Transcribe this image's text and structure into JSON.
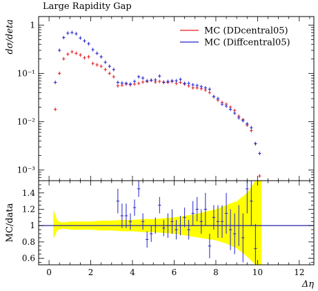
{
  "chart_data": [
    {
      "type": "scatter",
      "title": "Large Rapidity Gap",
      "ylabel": "dσ/deta",
      "yscale": "log",
      "ylim": [
        0.0006,
        1.5
      ],
      "xlim": [
        -0.5,
        12.7
      ],
      "yticks": [
        {
          "value": 1,
          "label": "1"
        },
        {
          "value": 0.1,
          "label": "10⁻¹"
        },
        {
          "value": 0.01,
          "label": "10⁻²"
        },
        {
          "value": 0.001,
          "label": "10⁻³"
        }
      ],
      "legend_position": "top-right",
      "series": [
        {
          "name": "MC (DDcentral05)",
          "color": "#e41a1c",
          "x": [
            0.3,
            0.5,
            0.7,
            0.9,
            1.1,
            1.3,
            1.5,
            1.7,
            1.9,
            2.1,
            2.3,
            2.5,
            2.7,
            2.9,
            3.1,
            3.3,
            3.5,
            3.7,
            3.9,
            4.1,
            4.3,
            4.5,
            4.7,
            4.9,
            5.1,
            5.3,
            5.5,
            5.7,
            5.9,
            6.1,
            6.3,
            6.5,
            6.7,
            6.9,
            7.1,
            7.3,
            7.5,
            7.7,
            7.9,
            8.1,
            8.3,
            8.5,
            8.7,
            8.9,
            9.1,
            9.3,
            9.5,
            9.7,
            9.9,
            10.1
          ],
          "y": [
            0.018,
            0.1,
            0.2,
            0.25,
            0.28,
            0.26,
            0.24,
            0.21,
            0.22,
            0.16,
            0.15,
            0.14,
            0.12,
            0.1,
            0.085,
            0.055,
            0.057,
            0.06,
            0.058,
            0.06,
            0.062,
            0.066,
            0.068,
            0.072,
            0.066,
            0.068,
            0.066,
            0.065,
            0.068,
            0.062,
            0.065,
            0.06,
            0.055,
            0.05,
            0.05,
            0.048,
            0.045,
            0.04,
            0.033,
            0.028,
            0.025,
            0.023,
            0.02,
            0.017,
            0.013,
            0.011,
            0.0085,
            0.0065,
            0.0035,
            0.00075
          ]
        },
        {
          "name": "MC (Diffcentral05)",
          "color": "#2222cc",
          "x": [
            0.3,
            0.5,
            0.7,
            0.9,
            1.1,
            1.3,
            1.5,
            1.7,
            1.9,
            2.1,
            2.3,
            2.5,
            2.7,
            2.9,
            3.1,
            3.3,
            3.5,
            3.7,
            3.9,
            4.1,
            4.3,
            4.5,
            4.7,
            4.9,
            5.1,
            5.3,
            5.5,
            5.7,
            5.9,
            6.1,
            6.3,
            6.5,
            6.7,
            6.9,
            7.1,
            7.3,
            7.5,
            7.7,
            7.9,
            8.1,
            8.3,
            8.5,
            8.7,
            8.9,
            9.1,
            9.3,
            9.5,
            9.7,
            9.9,
            10.1
          ],
          "y": [
            0.065,
            0.3,
            0.55,
            0.68,
            0.7,
            0.66,
            0.54,
            0.47,
            0.41,
            0.31,
            0.26,
            0.22,
            0.17,
            0.14,
            0.12,
            0.065,
            0.063,
            0.062,
            0.06,
            0.068,
            0.085,
            0.08,
            0.07,
            0.072,
            0.073,
            0.088,
            0.065,
            0.068,
            0.07,
            0.07,
            0.075,
            0.062,
            0.062,
            0.058,
            0.056,
            0.053,
            0.05,
            0.047,
            0.033,
            0.03,
            0.023,
            0.021,
            0.018,
            0.015,
            0.012,
            0.0105,
            0.009,
            0.0075,
            0.0035,
            0.0022
          ]
        }
      ]
    },
    {
      "type": "scatter",
      "ylabel": "MC/data",
      "xlabel": "Δη",
      "ylim": [
        0.52,
        1.55
      ],
      "xlim": [
        -0.5,
        12.7
      ],
      "xticks": [
        0,
        2,
        4,
        6,
        8,
        10,
        12
      ],
      "yticks": [
        0.6,
        0.8,
        1,
        1.2,
        1.4
      ],
      "band": {
        "color": "#ffff00",
        "x": [
          0.2,
          0.4,
          0.6,
          0.8,
          1.0,
          1.5,
          2.0,
          2.5,
          3.0,
          3.5,
          4.0,
          4.5,
          5.0,
          5.5,
          6.0,
          6.5,
          7.0,
          7.5,
          8.0,
          8.5,
          9.0,
          9.5,
          9.9,
          10.0,
          10.2
        ],
        "hi": [
          1.2,
          1.06,
          1.04,
          1.04,
          1.05,
          1.05,
          1.05,
          1.06,
          1.06,
          1.07,
          1.07,
          1.08,
          1.08,
          1.09,
          1.1,
          1.12,
          1.14,
          1.17,
          1.2,
          1.25,
          1.3,
          1.4,
          1.55,
          1.55,
          1.55
        ],
        "lo": [
          0.84,
          0.94,
          0.96,
          0.96,
          0.95,
          0.95,
          0.95,
          0.94,
          0.94,
          0.93,
          0.93,
          0.92,
          0.92,
          0.91,
          0.9,
          0.88,
          0.86,
          0.84,
          0.82,
          0.78,
          0.72,
          0.62,
          0.52,
          0.52,
          0.52
        ]
      },
      "series": [
        {
          "name": "MC (Diffcentral05)",
          "color": "#2222cc",
          "x": [
            3.3,
            3.5,
            3.7,
            3.9,
            4.1,
            4.3,
            4.5,
            4.7,
            4.9,
            5.1,
            5.3,
            5.5,
            5.7,
            5.9,
            6.1,
            6.3,
            6.5,
            6.7,
            6.9,
            7.1,
            7.3,
            7.5,
            7.7,
            7.9,
            8.1,
            8.3,
            8.5,
            8.7,
            8.9,
            9.1,
            9.3,
            9.5,
            9.7,
            9.9
          ],
          "y": [
            1.3,
            1.12,
            1.12,
            1.05,
            1.22,
            1.45,
            1.05,
            0.83,
            0.9,
            1.0,
            1.25,
            0.97,
            1.0,
            1.05,
            0.95,
            1.0,
            1.1,
            0.95,
            1.15,
            1.2,
            1.05,
            1.2,
            0.75,
            1.1,
            1.05,
            1.05,
            1.15,
            0.95,
            0.9,
            1.0,
            0.85,
            1.45,
            1.3,
            0.72
          ],
          "err": [
            0.15,
            0.15,
            0.15,
            0.1,
            0.1,
            0.1,
            0.1,
            0.1,
            0.1,
            0.1,
            0.1,
            0.1,
            0.15,
            0.15,
            0.12,
            0.12,
            0.12,
            0.12,
            0.15,
            0.15,
            0.15,
            0.2,
            0.15,
            0.15,
            0.2,
            0.2,
            0.25,
            0.25,
            0.25,
            0.25,
            0.3,
            0.3,
            0.3,
            0.3
          ]
        }
      ]
    }
  ]
}
